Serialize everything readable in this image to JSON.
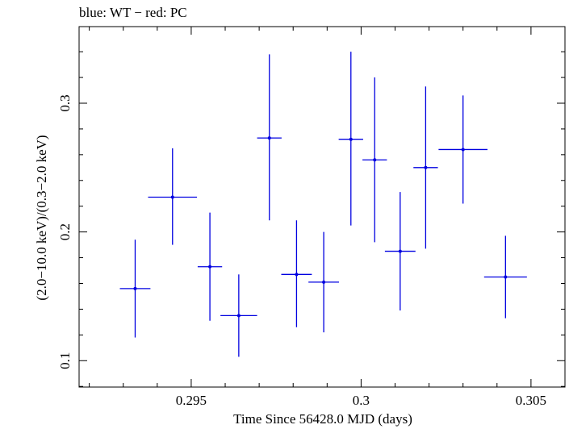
{
  "chart_data": {
    "type": "scatter",
    "title": "blue: WT − red: PC",
    "xlabel": "Time Since 56428.0 MJD (days)",
    "ylabel": "(2.0−10.0 keV)/(0.3−2.0 keV)",
    "xlim": [
      0.2917,
      0.306
    ],
    "ylim": [
      0.0795,
      0.3595
    ],
    "xticks": [
      0.295,
      0.3,
      0.305
    ],
    "xtick_labels": [
      "0.295",
      "0.3",
      "0.305"
    ],
    "yticks": [
      0.1,
      0.2,
      0.3
    ],
    "ytick_labels": [
      "0.1",
      "0.2",
      "0.3"
    ],
    "grid": false,
    "color": "#0000e0",
    "series": [
      {
        "points": [
          {
            "x": 0.29335,
            "xerr": 0.00045,
            "y": 0.156,
            "yerr_lo": 0.038,
            "yerr_hi": 0.038
          },
          {
            "x": 0.29445,
            "xerr": 0.00072,
            "y": 0.227,
            "yerr_lo": 0.037,
            "yerr_hi": 0.038
          },
          {
            "x": 0.29555,
            "xerr": 0.00036,
            "y": 0.173,
            "yerr_lo": 0.042,
            "yerr_hi": 0.042
          },
          {
            "x": 0.2964,
            "xerr": 0.00054,
            "y": 0.135,
            "yerr_lo": 0.032,
            "yerr_hi": 0.032
          },
          {
            "x": 0.2973,
            "xerr": 0.00036,
            "y": 0.273,
            "yerr_lo": 0.064,
            "yerr_hi": 0.065
          },
          {
            "x": 0.2981,
            "xerr": 0.00045,
            "y": 0.167,
            "yerr_lo": 0.041,
            "yerr_hi": 0.042
          },
          {
            "x": 0.2989,
            "xerr": 0.00045,
            "y": 0.161,
            "yerr_lo": 0.039,
            "yerr_hi": 0.039
          },
          {
            "x": 0.2997,
            "xerr": 0.00036,
            "y": 0.272,
            "yerr_lo": 0.067,
            "yerr_hi": 0.068
          },
          {
            "x": 0.3004,
            "xerr": 0.00036,
            "y": 0.256,
            "yerr_lo": 0.064,
            "yerr_hi": 0.064
          },
          {
            "x": 0.30115,
            "xerr": 0.00045,
            "y": 0.185,
            "yerr_lo": 0.046,
            "yerr_hi": 0.046
          },
          {
            "x": 0.3019,
            "xerr": 0.00036,
            "y": 0.25,
            "yerr_lo": 0.063,
            "yerr_hi": 0.063
          },
          {
            "x": 0.303,
            "xerr": 0.00072,
            "y": 0.264,
            "yerr_lo": 0.042,
            "yerr_hi": 0.042
          },
          {
            "x": 0.30425,
            "xerr": 0.00063,
            "y": 0.165,
            "yerr_lo": 0.032,
            "yerr_hi": 0.032
          }
        ]
      }
    ]
  }
}
